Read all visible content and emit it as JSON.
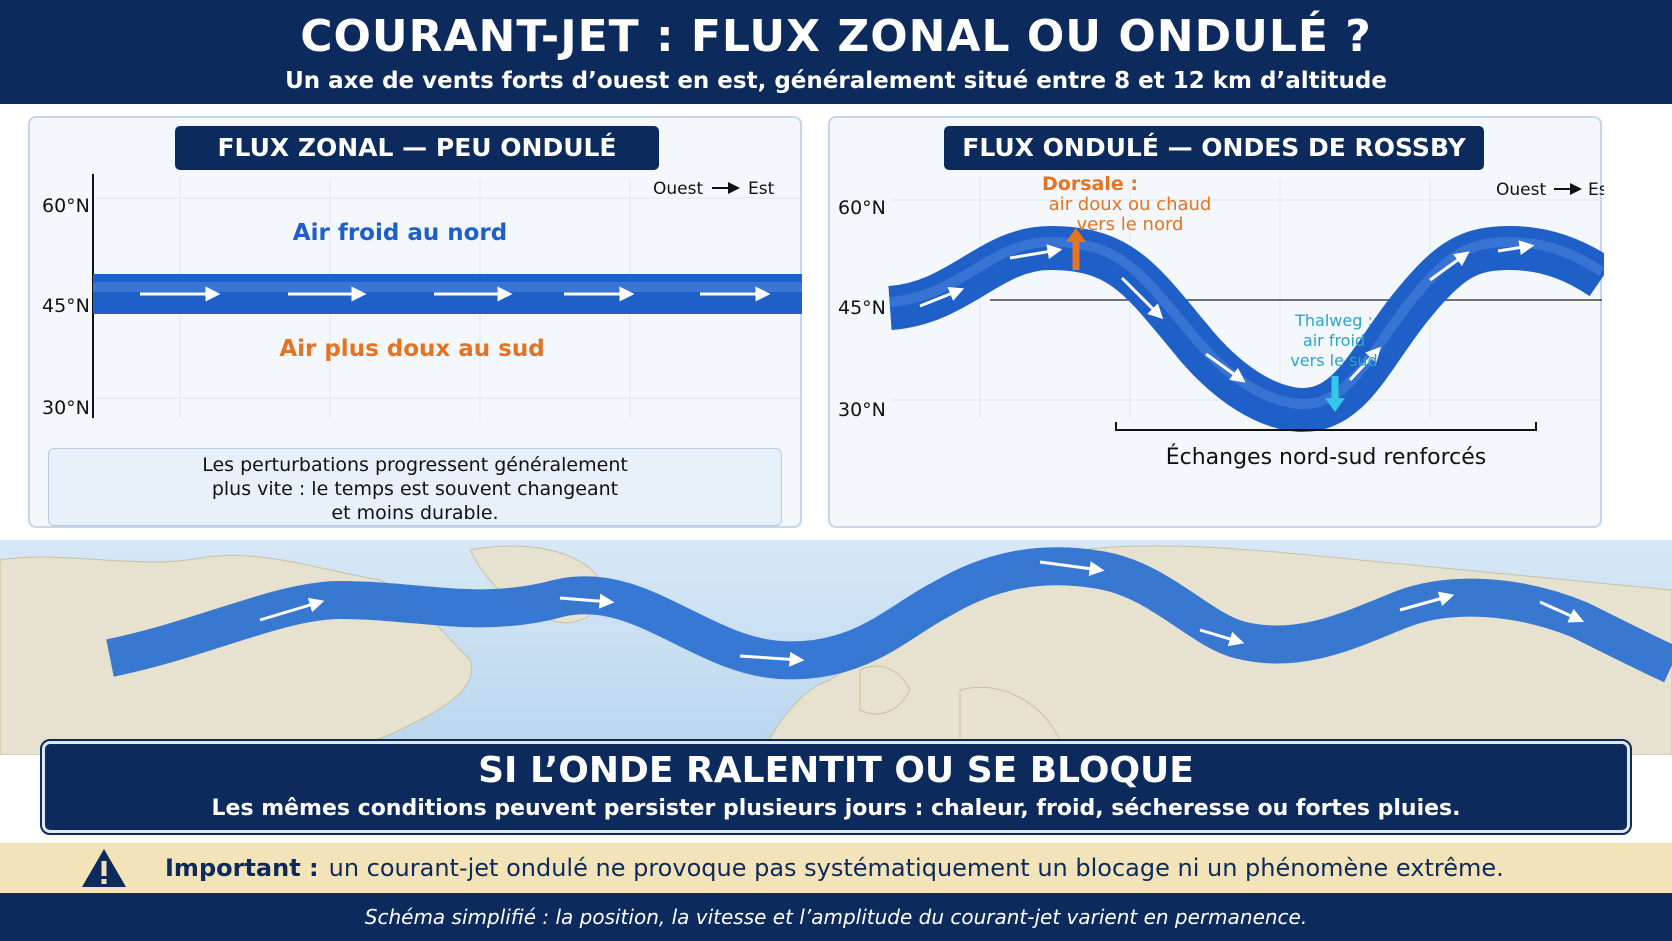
{
  "header": {
    "title": "COURANT-JET : FLUX ZONAL OU ONDULÉ ?",
    "subtitle": "Un axe de vents forts d’ouest en est, généralement situé entre 8 et 12 km d’altitude"
  },
  "left_panel": {
    "title": "FLUX ZONAL — PEU ONDULÉ",
    "lat_labels": [
      "60°N",
      "45°N",
      "30°N"
    ],
    "direction": {
      "from": "Ouest",
      "to": "Est"
    },
    "north_label": "Air froid au nord",
    "south_label": "Air plus doux au sud",
    "note_lines": [
      "Les perturbations progressent généralement",
      "plus vite : le temps est souvent changeant",
      "et moins durable."
    ]
  },
  "right_panel": {
    "title": "FLUX ONDULÉ — ONDES DE ROSSBY",
    "lat_labels": [
      "60°N",
      "45°N",
      "30°N"
    ],
    "direction": {
      "from": "Ouest",
      "to": "Est"
    },
    "ridge": {
      "title": "Dorsale :",
      "lines": [
        "air doux ou chaud",
        "vers le nord"
      ]
    },
    "trough": {
      "title": "Thalweg :",
      "lines": [
        "air froid",
        "vers le sud"
      ]
    },
    "exchange_label": "Échanges nord-sud renforcés"
  },
  "blocking": {
    "title": "SI L’ONDE RALENTIT OU SE BLOQUE",
    "text": "Les mêmes conditions peuvent persister plusieurs jours : chaleur, froid, sécheresse ou fortes  pluies."
  },
  "important": {
    "label": "Important :",
    "text": "un courant-jet ondulé ne provoque pas systématiquement un blocage ni un phénomène extrême."
  },
  "footer": "Schéma simplifié : la position, la vitesse et l’amplitude du courant-jet varient en permanence.",
  "colors": {
    "navy": "#0d2a5c",
    "jet_blue": "#1f5fc8",
    "warm_orange": "#e8731f",
    "cold_cyan": "#33c7e8",
    "important_bg": "#f3e3b8"
  }
}
